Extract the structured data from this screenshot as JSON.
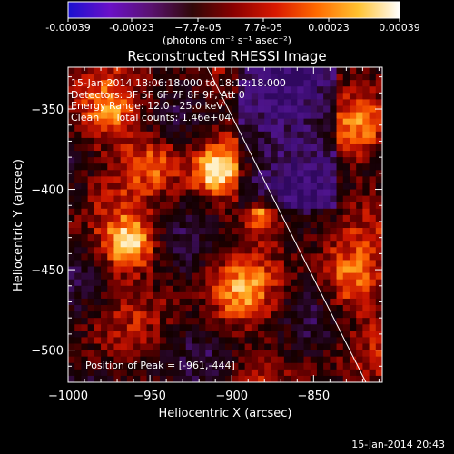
{
  "window": {
    "title": "Reconstructed RHESSI Image",
    "footer_date": "15-Jan-2014 20:43"
  },
  "colorbar": {
    "ticks": [
      "-0.00039",
      "-0.00023",
      "−7.7e-05",
      "7.7e-05",
      "0.00023",
      "0.00039"
    ],
    "unit_label": "(photons cm⁻² s⁻¹ asec⁻²)",
    "colors": [
      "#1a10d0",
      "#6a10c8",
      "#5a1270",
      "#300808",
      "#8a0000",
      "#d81800",
      "#ff6a00",
      "#ffc230",
      "#ffffff"
    ]
  },
  "info": {
    "time_range": "15-Jan-2014 18:06:18.000 to 18:12:18.000",
    "detectors": "Detectors: 3F 5F 6F 7F 8F 9F, Att 0",
    "energy": "Energy Range: 12.0 - 25.0 keV",
    "method": "Clean     Total counts: 1.46e+04",
    "peak": "Position of Peak = [-961,-444]"
  },
  "chart_data": {
    "type": "heatmap",
    "title": "Reconstructed RHESSI Image",
    "xlabel": "Heliocentric X (arcsec)",
    "ylabel": "Heliocentric Y (arcsec)",
    "xlim": [
      -1000,
      -808
    ],
    "ylim": [
      -520,
      -324
    ],
    "xticks": [
      -1000,
      -950,
      -900,
      -850
    ],
    "xtick_labels": [
      "−1000",
      "−950",
      "−900",
      "−850"
    ],
    "yticks": [
      -350,
      -400,
      -450,
      -500
    ],
    "ytick_labels": [
      "−350",
      "−400",
      "−450",
      "−500"
    ],
    "limb_line": {
      "x": [
        -915,
        -818
      ],
      "y": [
        -324,
        -520
      ]
    },
    "peak_position": [
      -961,
      -444
    ],
    "value_range": [
      -0.00039,
      0.00039
    ],
    "grid_cols": 48,
    "grid_rows": 49
  }
}
